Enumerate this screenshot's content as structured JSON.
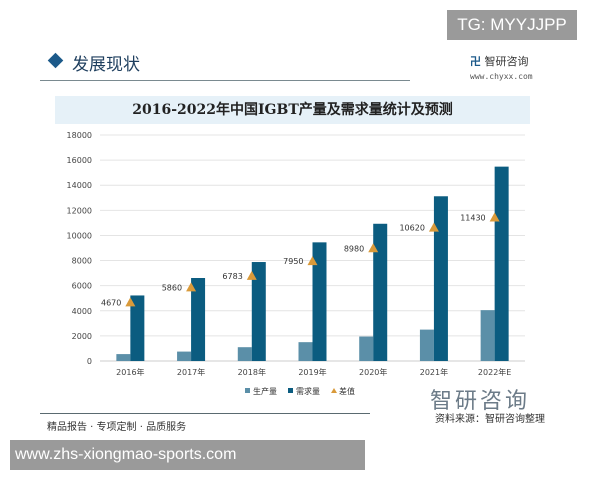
{
  "watermark_tag": "TG: MYYJJPP",
  "header": {
    "section_title": "发展现状",
    "brand": "智研咨询",
    "brand_url": "www.chyxx.com"
  },
  "footer": {
    "tagline": "精品报告 · 专项定制 · 品质服务",
    "brand_large": "智研咨询",
    "source": "资料来源：智研咨询整理",
    "site_banner": "www.zhs-xiongmao-sports.com"
  },
  "chart_data": {
    "type": "bar",
    "title": "2016-2022年中国IGBT产量及需求量统计及预测",
    "categories": [
      "2016年",
      "2017年",
      "2018年",
      "2019年",
      "2020年",
      "2021年",
      "2022年E"
    ],
    "series": [
      {
        "name": "生产量",
        "values": [
          550,
          750,
          1100,
          1500,
          1950,
          2500,
          4050
        ],
        "color": "#5b8fa8"
      },
      {
        "name": "需求量",
        "values": [
          5220,
          6610,
          7883,
          9450,
          10930,
          13120,
          15480
        ],
        "color": "#0b5c80"
      },
      {
        "name": "差值",
        "values": [
          4670,
          5860,
          6783,
          7950,
          8980,
          10620,
          11430
        ],
        "color": "#d99a3a",
        "marker": "triangle",
        "labels": [
          "4670",
          "5860",
          "6783",
          "7950",
          "8980",
          "10620",
          "11430"
        ]
      }
    ],
    "ylim": [
      0,
      18000
    ],
    "yticks": [
      "0",
      "2000",
      "4000",
      "6000",
      "8000",
      "10000",
      "12000",
      "14000",
      "16000",
      "18000"
    ],
    "grid": true,
    "legend": "bottom"
  }
}
